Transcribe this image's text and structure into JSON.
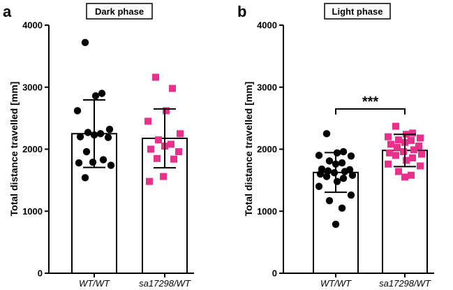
{
  "colors": {
    "wt": "#000000",
    "mutant": "#e8308c",
    "axis": "#000000"
  },
  "chart_data": [
    {
      "type": "bar",
      "panel_label": "a",
      "title": "Dark phase",
      "ylabel": "Total distance travelled [mm]",
      "ylim": [
        0,
        4000
      ],
      "yticks": [
        0,
        1000,
        2000,
        3000,
        4000
      ],
      "categories": [
        "WT/WT",
        "sa17298/WT"
      ],
      "significance": null,
      "series": [
        {
          "category": "WT/WT",
          "marker": "circle",
          "mean": 2250,
          "sd": 545,
          "points": [
            3720,
            2900,
            2860,
            2620,
            2320,
            2270,
            2250,
            2230,
            2200,
            2190,
            1960,
            1830,
            1790,
            1780,
            1740,
            1540
          ]
        },
        {
          "category": "sa17298/WT",
          "marker": "square",
          "mean": 2175,
          "sd": 475,
          "points": [
            3160,
            2980,
            2620,
            2450,
            2250,
            2150,
            2080,
            2050,
            2000,
            1960,
            1850,
            1840,
            1560,
            1480
          ]
        }
      ]
    },
    {
      "type": "bar",
      "panel_label": "b",
      "title": "Light phase",
      "ylabel": "Total distance travelled [mm]",
      "ylim": [
        0,
        4000
      ],
      "yticks": [
        0,
        1000,
        2000,
        3000,
        4000
      ],
      "categories": [
        "WT/WT",
        "sa17298/WT"
      ],
      "significance": "***",
      "series": [
        {
          "category": "WT/WT",
          "marker": "circle",
          "mean": 1625,
          "sd": 320,
          "points": [
            2250,
            1960,
            1940,
            1900,
            1890,
            1810,
            1780,
            1760,
            1680,
            1670,
            1650,
            1640,
            1620,
            1600,
            1580,
            1560,
            1530,
            1480,
            1400,
            1260,
            1170,
            1050,
            790
          ]
        },
        {
          "category": "sa17298/WT",
          "marker": "square",
          "mean": 1980,
          "sd": 260,
          "points": [
            2370,
            2260,
            2240,
            2200,
            2180,
            2150,
            2140,
            2110,
            2080,
            2050,
            2030,
            1990,
            1960,
            1940,
            1920,
            1900,
            1860,
            1820,
            1760,
            1730,
            1640,
            1580,
            1550
          ]
        }
      ]
    }
  ]
}
